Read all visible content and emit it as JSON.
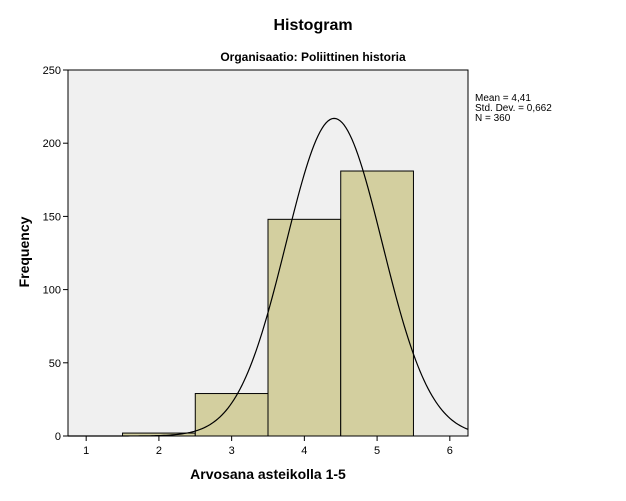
{
  "chart_data": {
    "type": "bar",
    "title": "Histogram",
    "subtitle": "Organisaatio: Poliittinen historia",
    "xlabel": "Arvosana asteikolla 1-5",
    "ylabel": "Frequency",
    "xlim": [
      0.75,
      6.25
    ],
    "ylim": [
      0,
      250
    ],
    "x_ticks": [
      1,
      2,
      3,
      4,
      5,
      6
    ],
    "y_ticks": [
      0,
      50,
      100,
      150,
      200,
      250
    ],
    "bins": [
      {
        "x": 2,
        "value": 2
      },
      {
        "x": 3,
        "value": 29
      },
      {
        "x": 4,
        "value": 148
      },
      {
        "x": 5,
        "value": 181
      }
    ],
    "bin_width": 1,
    "normal_curve": {
      "mean": 4.41,
      "std_dev": 0.662,
      "n": 360
    },
    "stats_text": [
      "Mean = 4,41",
      "Std. Dev. = 0,662",
      "N = 360"
    ],
    "grid": false,
    "colors": {
      "bar_fill": "#d3cf9f",
      "bar_stroke": "#000000",
      "plot_background": "#f0f0f0",
      "curve": "#000000"
    }
  }
}
